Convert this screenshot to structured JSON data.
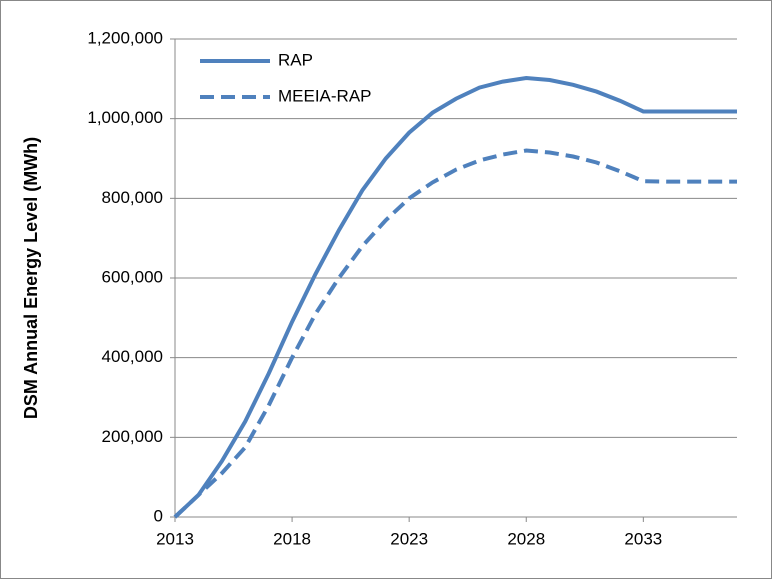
{
  "chart_data": {
    "type": "line",
    "y_label": "DSM Annual Energy Level (MWh)",
    "x": [
      2013,
      2014,
      2015,
      2016,
      2017,
      2018,
      2019,
      2020,
      2021,
      2022,
      2023,
      2024,
      2025,
      2026,
      2027,
      2028,
      2029,
      2030,
      2031,
      2032,
      2033,
      2034,
      2035,
      2036,
      2037
    ],
    "series": [
      {
        "name": "RAP",
        "color": "#4f81bd",
        "dash": false,
        "values": [
          0,
          55000,
          140000,
          240000,
          360000,
          490000,
          610000,
          720000,
          820000,
          900000,
          965000,
          1015000,
          1050000,
          1078000,
          1093000,
          1102000,
          1097000,
          1085000,
          1068000,
          1045000,
          1018000,
          1018000,
          1018000,
          1018000,
          1018000
        ]
      },
      {
        "name": "MEEIA-RAP",
        "color": "#4f81bd",
        "dash": true,
        "values": [
          0,
          55000,
          110000,
          175000,
          280000,
          400000,
          510000,
          600000,
          680000,
          745000,
          800000,
          840000,
          872000,
          895000,
          910000,
          920000,
          915000,
          905000,
          890000,
          868000,
          843000,
          842000,
          842000,
          842000,
          842000
        ]
      }
    ],
    "xlim": [
      2013,
      2037
    ],
    "xticks": [
      2013,
      2018,
      2023,
      2028,
      2033
    ],
    "ylim": [
      0,
      1200000
    ],
    "yticks": [
      0,
      {
        "value": 200000,
        "label": "200,000"
      },
      {
        "value": 400000,
        "label": "400,000"
      },
      {
        "value": 600000,
        "label": "600,000"
      },
      {
        "value": 800000,
        "label": "800,000"
      },
      {
        "value": 1000000,
        "label": "1,000,000"
      },
      {
        "value": 1200000,
        "label": "1,200,000"
      }
    ],
    "grid": true,
    "legend": "top-left"
  }
}
